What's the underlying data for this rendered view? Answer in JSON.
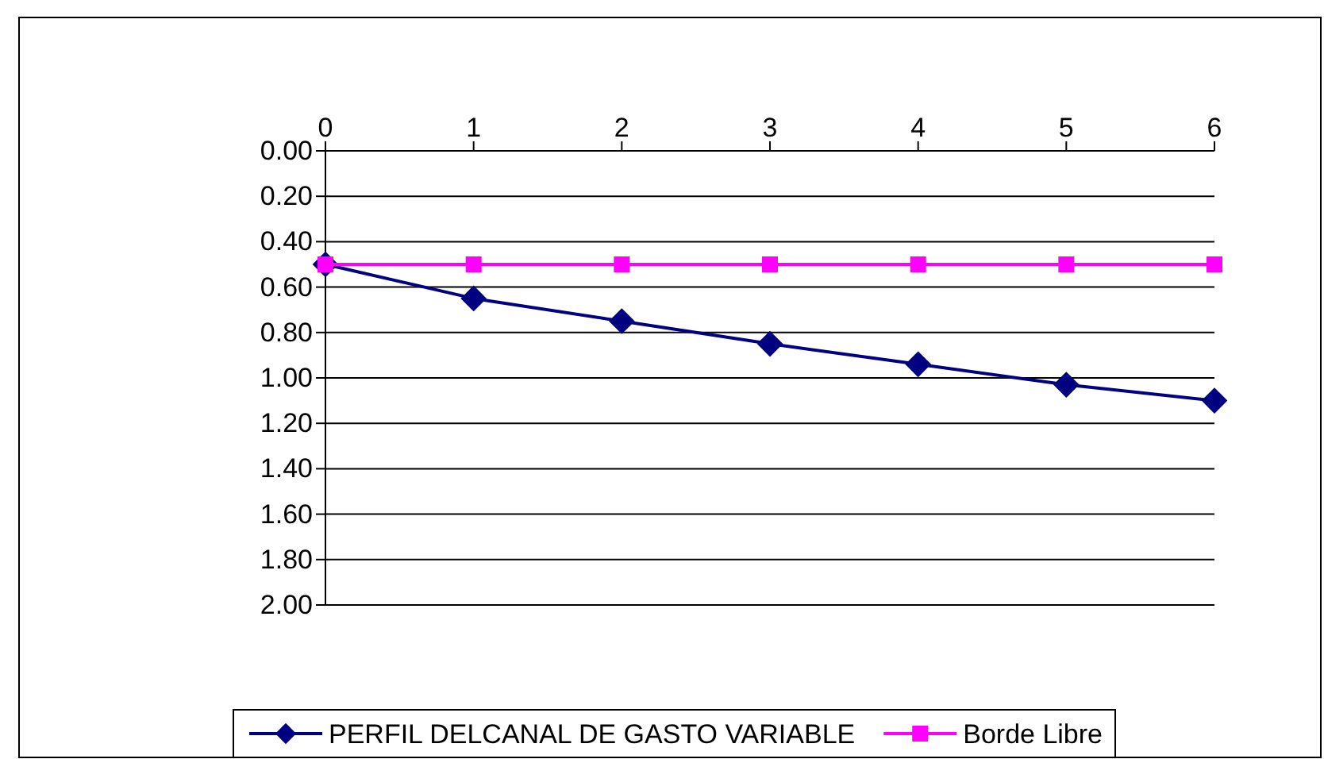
{
  "chart_data": {
    "type": "line",
    "x": [
      0,
      1,
      2,
      3,
      4,
      5,
      6
    ],
    "xlim": [
      0,
      6
    ],
    "xticks": [
      0,
      1,
      2,
      3,
      4,
      5,
      6
    ],
    "ylim": [
      2,
      0
    ],
    "yticks": [
      {
        "value": 0,
        "label": "0.00"
      },
      {
        "value": 0.2,
        "label": "0.20"
      },
      {
        "value": 0.4,
        "label": "0.40"
      },
      {
        "value": 0.6,
        "label": "0.60"
      },
      {
        "value": 0.8,
        "label": "0.80"
      },
      {
        "value": 1,
        "label": "1.00"
      },
      {
        "value": 1.2,
        "label": "1.20"
      },
      {
        "value": 1.4,
        "label": "1.40"
      },
      {
        "value": 1.6,
        "label": "1.60"
      },
      {
        "value": 1.8,
        "label": "1.80"
      },
      {
        "value": 2,
        "label": "2.00"
      }
    ],
    "grid": "y",
    "legend": "bottom",
    "series": [
      {
        "name": "PERFIL DELCANAL DE GASTO VARIABLE",
        "color": "#000080",
        "marker": "diamond",
        "values": [
          0.5,
          0.65,
          0.75,
          0.85,
          0.94,
          1.03,
          1.1
        ]
      },
      {
        "name": "Borde Libre",
        "color": "#ff00ff",
        "marker": "square",
        "values": [
          0.5,
          0.5,
          0.5,
          0.5,
          0.5,
          0.5,
          0.5
        ]
      }
    ]
  }
}
